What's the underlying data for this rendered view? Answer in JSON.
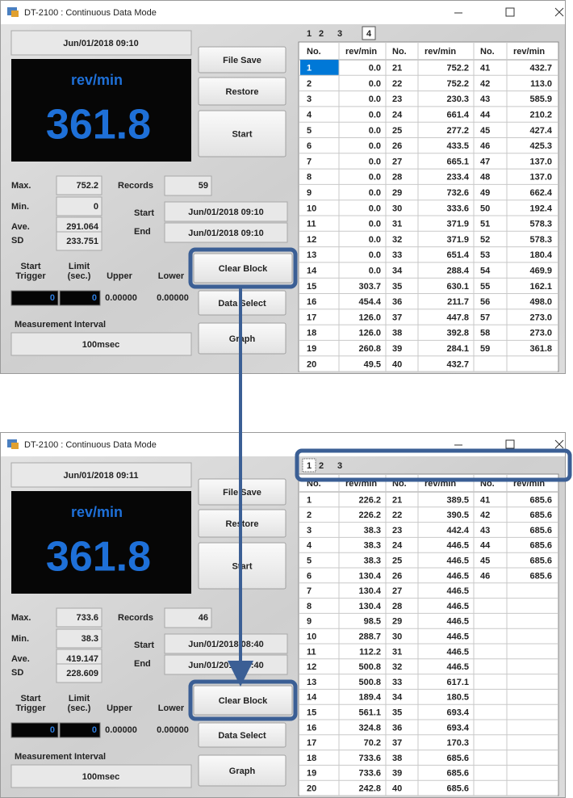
{
  "windows": [
    {
      "title": "DT-2100 : Continuous Data Mode",
      "date": "Jun/01/2018 09:10",
      "display_unit": "rev/min",
      "display_value": "361.8",
      "buttons": {
        "file_save": "File Save",
        "restore": "Restore",
        "start": "Start",
        "clear_block": "Clear Block",
        "data_select": "Data Select",
        "graph": "Graph"
      },
      "stats": {
        "max_label": "Max.",
        "max": "752.2",
        "min_label": "Min.",
        "min": "0",
        "ave_label": "Ave.",
        "ave": "291.064",
        "sd_label": "SD",
        "sd": "233.751",
        "records_label": "Records",
        "records": "59",
        "start_label": "Start",
        "start": "Jun/01/2018 09:10",
        "end_label": "End",
        "end": "Jun/01/2018 09:10"
      },
      "trigger": {
        "start_trigger_label": "Start Trigger",
        "limit_label": "Limit (sec.)",
        "upper_label": "Upper",
        "lower_label": "Lower",
        "start_trigger": "0",
        "limit": "0",
        "upper": "0.00000",
        "lower": "0.00000"
      },
      "interval": {
        "label": "Measurement Interval",
        "value": "100msec"
      },
      "tabs": [
        "1",
        "2",
        "3",
        "4"
      ],
      "active_tab": 3,
      "selected_row": 0,
      "table": {
        "header": [
          "No.",
          "rev/min",
          "No.",
          "rev/min",
          "No.",
          "rev/min"
        ],
        "rows": [
          [
            "1",
            "0.0",
            "21",
            "752.2",
            "41",
            "432.7"
          ],
          [
            "2",
            "0.0",
            "22",
            "752.2",
            "42",
            "113.0"
          ],
          [
            "3",
            "0.0",
            "23",
            "230.3",
            "43",
            "585.9"
          ],
          [
            "4",
            "0.0",
            "24",
            "661.4",
            "44",
            "210.2"
          ],
          [
            "5",
            "0.0",
            "25",
            "277.2",
            "45",
            "427.4"
          ],
          [
            "6",
            "0.0",
            "26",
            "433.5",
            "46",
            "425.3"
          ],
          [
            "7",
            "0.0",
            "27",
            "665.1",
            "47",
            "137.0"
          ],
          [
            "8",
            "0.0",
            "28",
            "233.4",
            "48",
            "137.0"
          ],
          [
            "9",
            "0.0",
            "29",
            "732.6",
            "49",
            "662.4"
          ],
          [
            "10",
            "0.0",
            "30",
            "333.6",
            "50",
            "192.4"
          ],
          [
            "11",
            "0.0",
            "31",
            "371.9",
            "51",
            "578.3"
          ],
          [
            "12",
            "0.0",
            "32",
            "371.9",
            "52",
            "578.3"
          ],
          [
            "13",
            "0.0",
            "33",
            "651.4",
            "53",
            "180.4"
          ],
          [
            "14",
            "0.0",
            "34",
            "288.4",
            "54",
            "469.9"
          ],
          [
            "15",
            "303.7",
            "35",
            "630.1",
            "55",
            "162.1"
          ],
          [
            "16",
            "454.4",
            "36",
            "211.7",
            "56",
            "498.0"
          ],
          [
            "17",
            "126.0",
            "37",
            "447.8",
            "57",
            "273.0"
          ],
          [
            "18",
            "126.0",
            "38",
            "392.8",
            "58",
            "273.0"
          ],
          [
            "19",
            "260.8",
            "39",
            "284.1",
            "59",
            "361.8"
          ],
          [
            "20",
            "49.5",
            "40",
            "432.7"
          ]
        ]
      }
    },
    {
      "title": "DT-2100 : Continuous Data Mode",
      "date": "Jun/01/2018 09:11",
      "display_unit": "rev/min",
      "display_value": "361.8",
      "buttons": {
        "file_save": "File Save",
        "restore": "Restore",
        "start": "Start",
        "clear_block": "Clear Block",
        "data_select": "Data Select",
        "graph": "Graph"
      },
      "stats": {
        "max_label": "Max.",
        "max": "733.6",
        "min_label": "Min.",
        "min": "38.3",
        "ave_label": "Ave.",
        "ave": "419.147",
        "sd_label": "SD",
        "sd": "228.609",
        "records_label": "Records",
        "records": "46",
        "start_label": "Start",
        "start": "Jun/01/2018 08:40",
        "end_label": "End",
        "end": "Jun/01/2018 08:40"
      },
      "trigger": {
        "start_trigger_label": "Start Trigger",
        "limit_label": "Limit (sec.)",
        "upper_label": "Upper",
        "lower_label": "Lower",
        "start_trigger": "0",
        "limit": "0",
        "upper": "0.00000",
        "lower": "0.00000"
      },
      "interval": {
        "label": "Measurement Interval",
        "value": "100msec"
      },
      "tabs": [
        "1",
        "2",
        "3"
      ],
      "active_tab": 0,
      "table": {
        "header": [
          "No.",
          "rev/min",
          "No.",
          "rev/min",
          "No.",
          "rev/min"
        ],
        "rows": [
          [
            "1",
            "226.2",
            "21",
            "389.5",
            "41",
            "685.6"
          ],
          [
            "2",
            "226.2",
            "22",
            "390.5",
            "42",
            "685.6"
          ],
          [
            "3",
            "38.3",
            "23",
            "442.4",
            "43",
            "685.6"
          ],
          [
            "4",
            "38.3",
            "24",
            "446.5",
            "44",
            "685.6"
          ],
          [
            "5",
            "38.3",
            "25",
            "446.5",
            "45",
            "685.6"
          ],
          [
            "6",
            "130.4",
            "26",
            "446.5",
            "46",
            "685.6"
          ],
          [
            "7",
            "130.4",
            "27",
            "446.5"
          ],
          [
            "8",
            "130.4",
            "28",
            "446.5"
          ],
          [
            "9",
            "98.5",
            "29",
            "446.5"
          ],
          [
            "10",
            "288.7",
            "30",
            "446.5"
          ],
          [
            "11",
            "112.2",
            "31",
            "446.5"
          ],
          [
            "12",
            "500.8",
            "32",
            "446.5"
          ],
          [
            "13",
            "500.8",
            "33",
            "617.1"
          ],
          [
            "14",
            "189.4",
            "34",
            "180.5"
          ],
          [
            "15",
            "561.1",
            "35",
            "693.4"
          ],
          [
            "16",
            "324.8",
            "36",
            "693.4"
          ],
          [
            "17",
            "70.2",
            "37",
            "170.3"
          ],
          [
            "18",
            "733.6",
            "38",
            "685.6"
          ],
          [
            "19",
            "733.6",
            "39",
            "685.6"
          ],
          [
            "20",
            "242.8",
            "40",
            "685.6"
          ]
        ]
      }
    }
  ]
}
